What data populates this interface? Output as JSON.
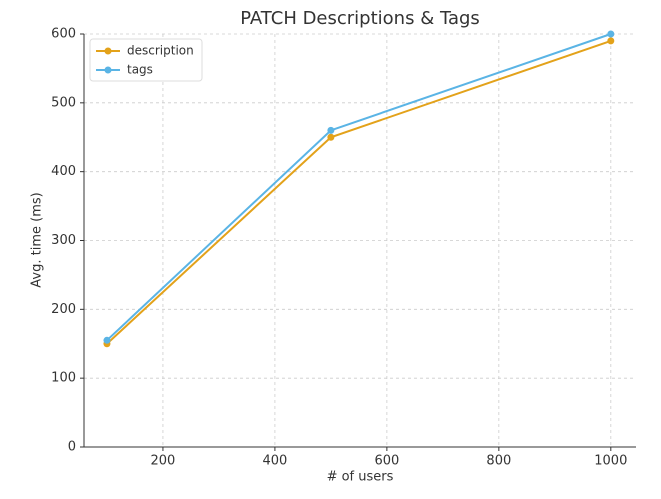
{
  "chart_data": {
    "type": "line",
    "title": "PATCH Descriptions & Tags",
    "x_label": "# of users",
    "y_label": "Avg. time (ms)",
    "x": [
      100,
      500,
      1000
    ],
    "series": [
      {
        "name": "description",
        "color": "#e3a21a",
        "values": [
          150,
          450,
          590
        ]
      },
      {
        "name": "tags",
        "color": "#5ab4e5",
        "values": [
          155,
          460,
          600
        ]
      }
    ],
    "xlim": [
      59,
      1045
    ],
    "xticks": [
      200,
      400,
      600,
      800,
      1000
    ],
    "ylim": [
      0,
      600
    ],
    "yticks": [
      0,
      100,
      200,
      300,
      400,
      500,
      600
    ],
    "grid": true,
    "legend": "upper-left"
  }
}
